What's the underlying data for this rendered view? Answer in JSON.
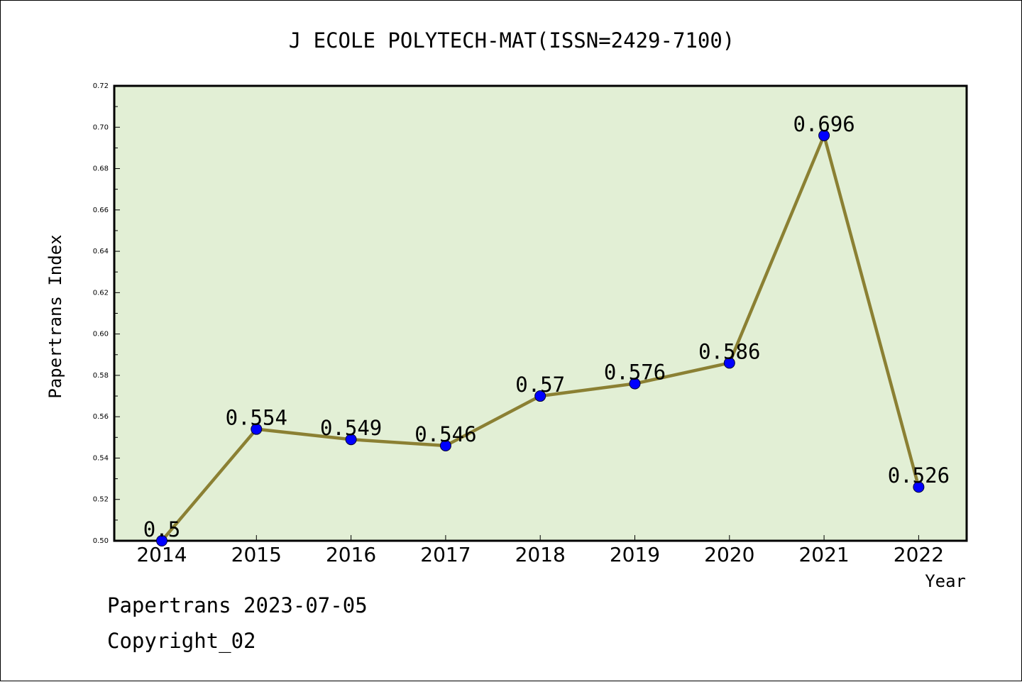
{
  "chart_data": {
    "type": "line",
    "title": "J ECOLE POLYTECH-MAT(ISSN=2429-7100)",
    "xlabel": "Year",
    "ylabel": "Papertrans Index",
    "categories": [
      "2014",
      "2015",
      "2016",
      "2017",
      "2018",
      "2019",
      "2020",
      "2021",
      "2022"
    ],
    "series": [
      {
        "values": [
          0.5,
          0.554,
          0.549,
          0.546,
          0.57,
          0.576,
          0.586,
          0.696,
          0.526
        ],
        "labels": [
          "0.5",
          "0.554",
          "0.549",
          "0.546",
          "0.57",
          "0.576",
          "0.586",
          "0.696",
          "0.526"
        ]
      }
    ],
    "ylim": [
      0.5,
      0.72
    ],
    "yticks": [
      "0.50",
      "0.52",
      "0.54",
      "0.56",
      "0.58",
      "0.60",
      "0.62",
      "0.64",
      "0.66",
      "0.68",
      "0.70",
      "0.72"
    ],
    "grid": false,
    "colors": {
      "plot_background": "#e2efd5",
      "line": "#8b8033",
      "marker": "#0000ff"
    }
  },
  "footer": {
    "date_text": "Papertrans 2023-07-05",
    "copyright_text": "Copyright_02"
  }
}
